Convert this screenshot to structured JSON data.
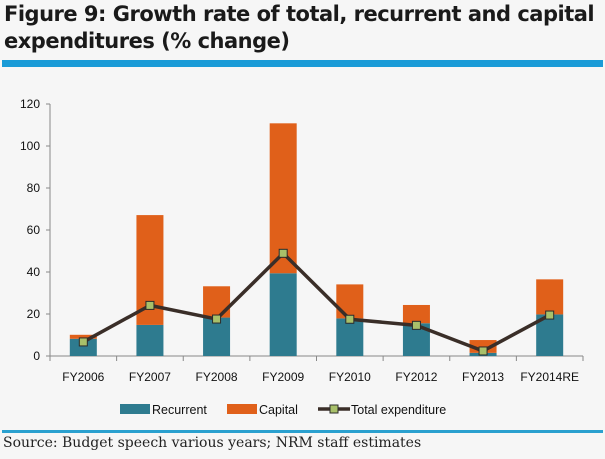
{
  "header": {
    "title": "Figure 9: Growth rate of total, recurrent and capital expenditures (% change)"
  },
  "footer": {
    "source": "Source: Budget speech various years; NRM staff estimates"
  },
  "colors": {
    "recurrent": "#2e7b8f",
    "capital": "#e0601a",
    "total_line": "#3a2e28",
    "total_marker": "#a8c06a",
    "rule": "#1a9bd7"
  },
  "chart_data": {
    "type": "bar",
    "stacked": true,
    "title": "",
    "xlabel": "",
    "ylabel": "",
    "ylim": [
      0,
      120
    ],
    "yticks": [
      0,
      20,
      40,
      60,
      80,
      100,
      120
    ],
    "grid": false,
    "legend_position": "bottom",
    "categories": [
      "FY2006",
      "FY2007",
      "FY2008",
      "FY2009",
      "FY2010",
      "FY2012",
      "FY2013",
      "FY2014RE"
    ],
    "series": [
      {
        "name": "Recurrent",
        "kind": "bar",
        "values": [
          8.2,
          14.8,
          18.3,
          39.4,
          17.9,
          15.6,
          1.5,
          19.8
        ]
      },
      {
        "name": "Capital",
        "kind": "bar",
        "values": [
          1.9,
          52.3,
          14.9,
          71.4,
          16.2,
          8.7,
          6.1,
          16.7
        ]
      },
      {
        "name": "Total expenditure",
        "kind": "line",
        "values": [
          6.7,
          24.1,
          17.6,
          48.9,
          17.5,
          14.6,
          2.4,
          19.5
        ]
      }
    ]
  }
}
